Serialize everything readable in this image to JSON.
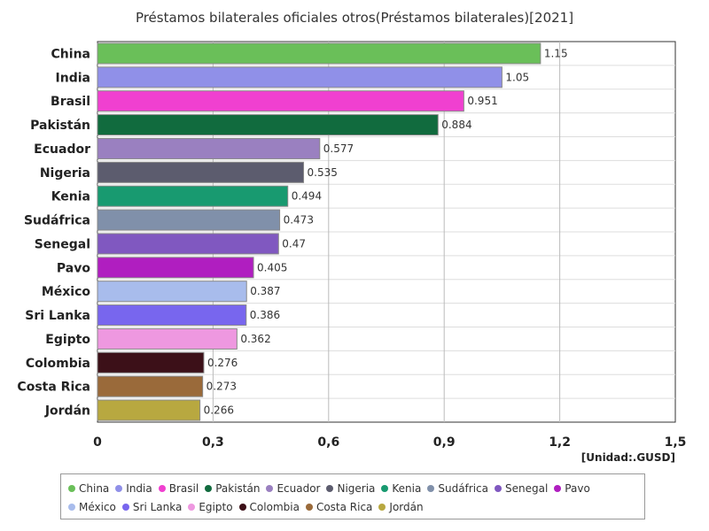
{
  "chart_data": {
    "type": "bar",
    "orientation": "horizontal",
    "title": "Préstamos bilaterales oficiales otros(Préstamos bilaterales)[2021]",
    "unit_label": "[Unidad:.GUSD]",
    "categories": [
      "China",
      "India",
      "Brasil",
      "Pakistán",
      "Ecuador",
      "Nigeria",
      "Kenia",
      "Sudáfrica",
      "Senegal",
      "Pavo",
      "México",
      "Sri Lanka",
      "Egipto",
      "Colombia",
      "Costa Rica",
      "Jordán"
    ],
    "values": [
      1.15,
      1.05,
      0.951,
      0.884,
      0.577,
      0.535,
      0.494,
      0.473,
      0.47,
      0.405,
      0.387,
      0.386,
      0.362,
      0.276,
      0.273,
      0.266
    ],
    "value_labels": [
      "1.15",
      "1.05",
      "0.951",
      "0.884",
      "0.577",
      "0.535",
      "0.494",
      "0.473",
      "0.47",
      "0.405",
      "0.387",
      "0.386",
      "0.362",
      "0.276",
      "0.273",
      "0.266"
    ],
    "colors": [
      "#6abf59",
      "#9090e8",
      "#f040d0",
      "#116b3e",
      "#9a80c0",
      "#5c5c6e",
      "#189a70",
      "#8090aa",
      "#8058c0",
      "#b01ec0",
      "#a8bcec",
      "#7866ee",
      "#ee98e0",
      "#3c1018",
      "#9a6a3a",
      "#b8a840"
    ],
    "xlim": [
      0,
      1.5
    ],
    "xticks": [
      0,
      0.3,
      0.6,
      0.9,
      1.2,
      1.5
    ],
    "xtick_labels": [
      "0",
      "0,3",
      "0,6",
      "0,9",
      "1,2",
      "1,5"
    ],
    "grid": true,
    "legend_position": "bottom"
  }
}
